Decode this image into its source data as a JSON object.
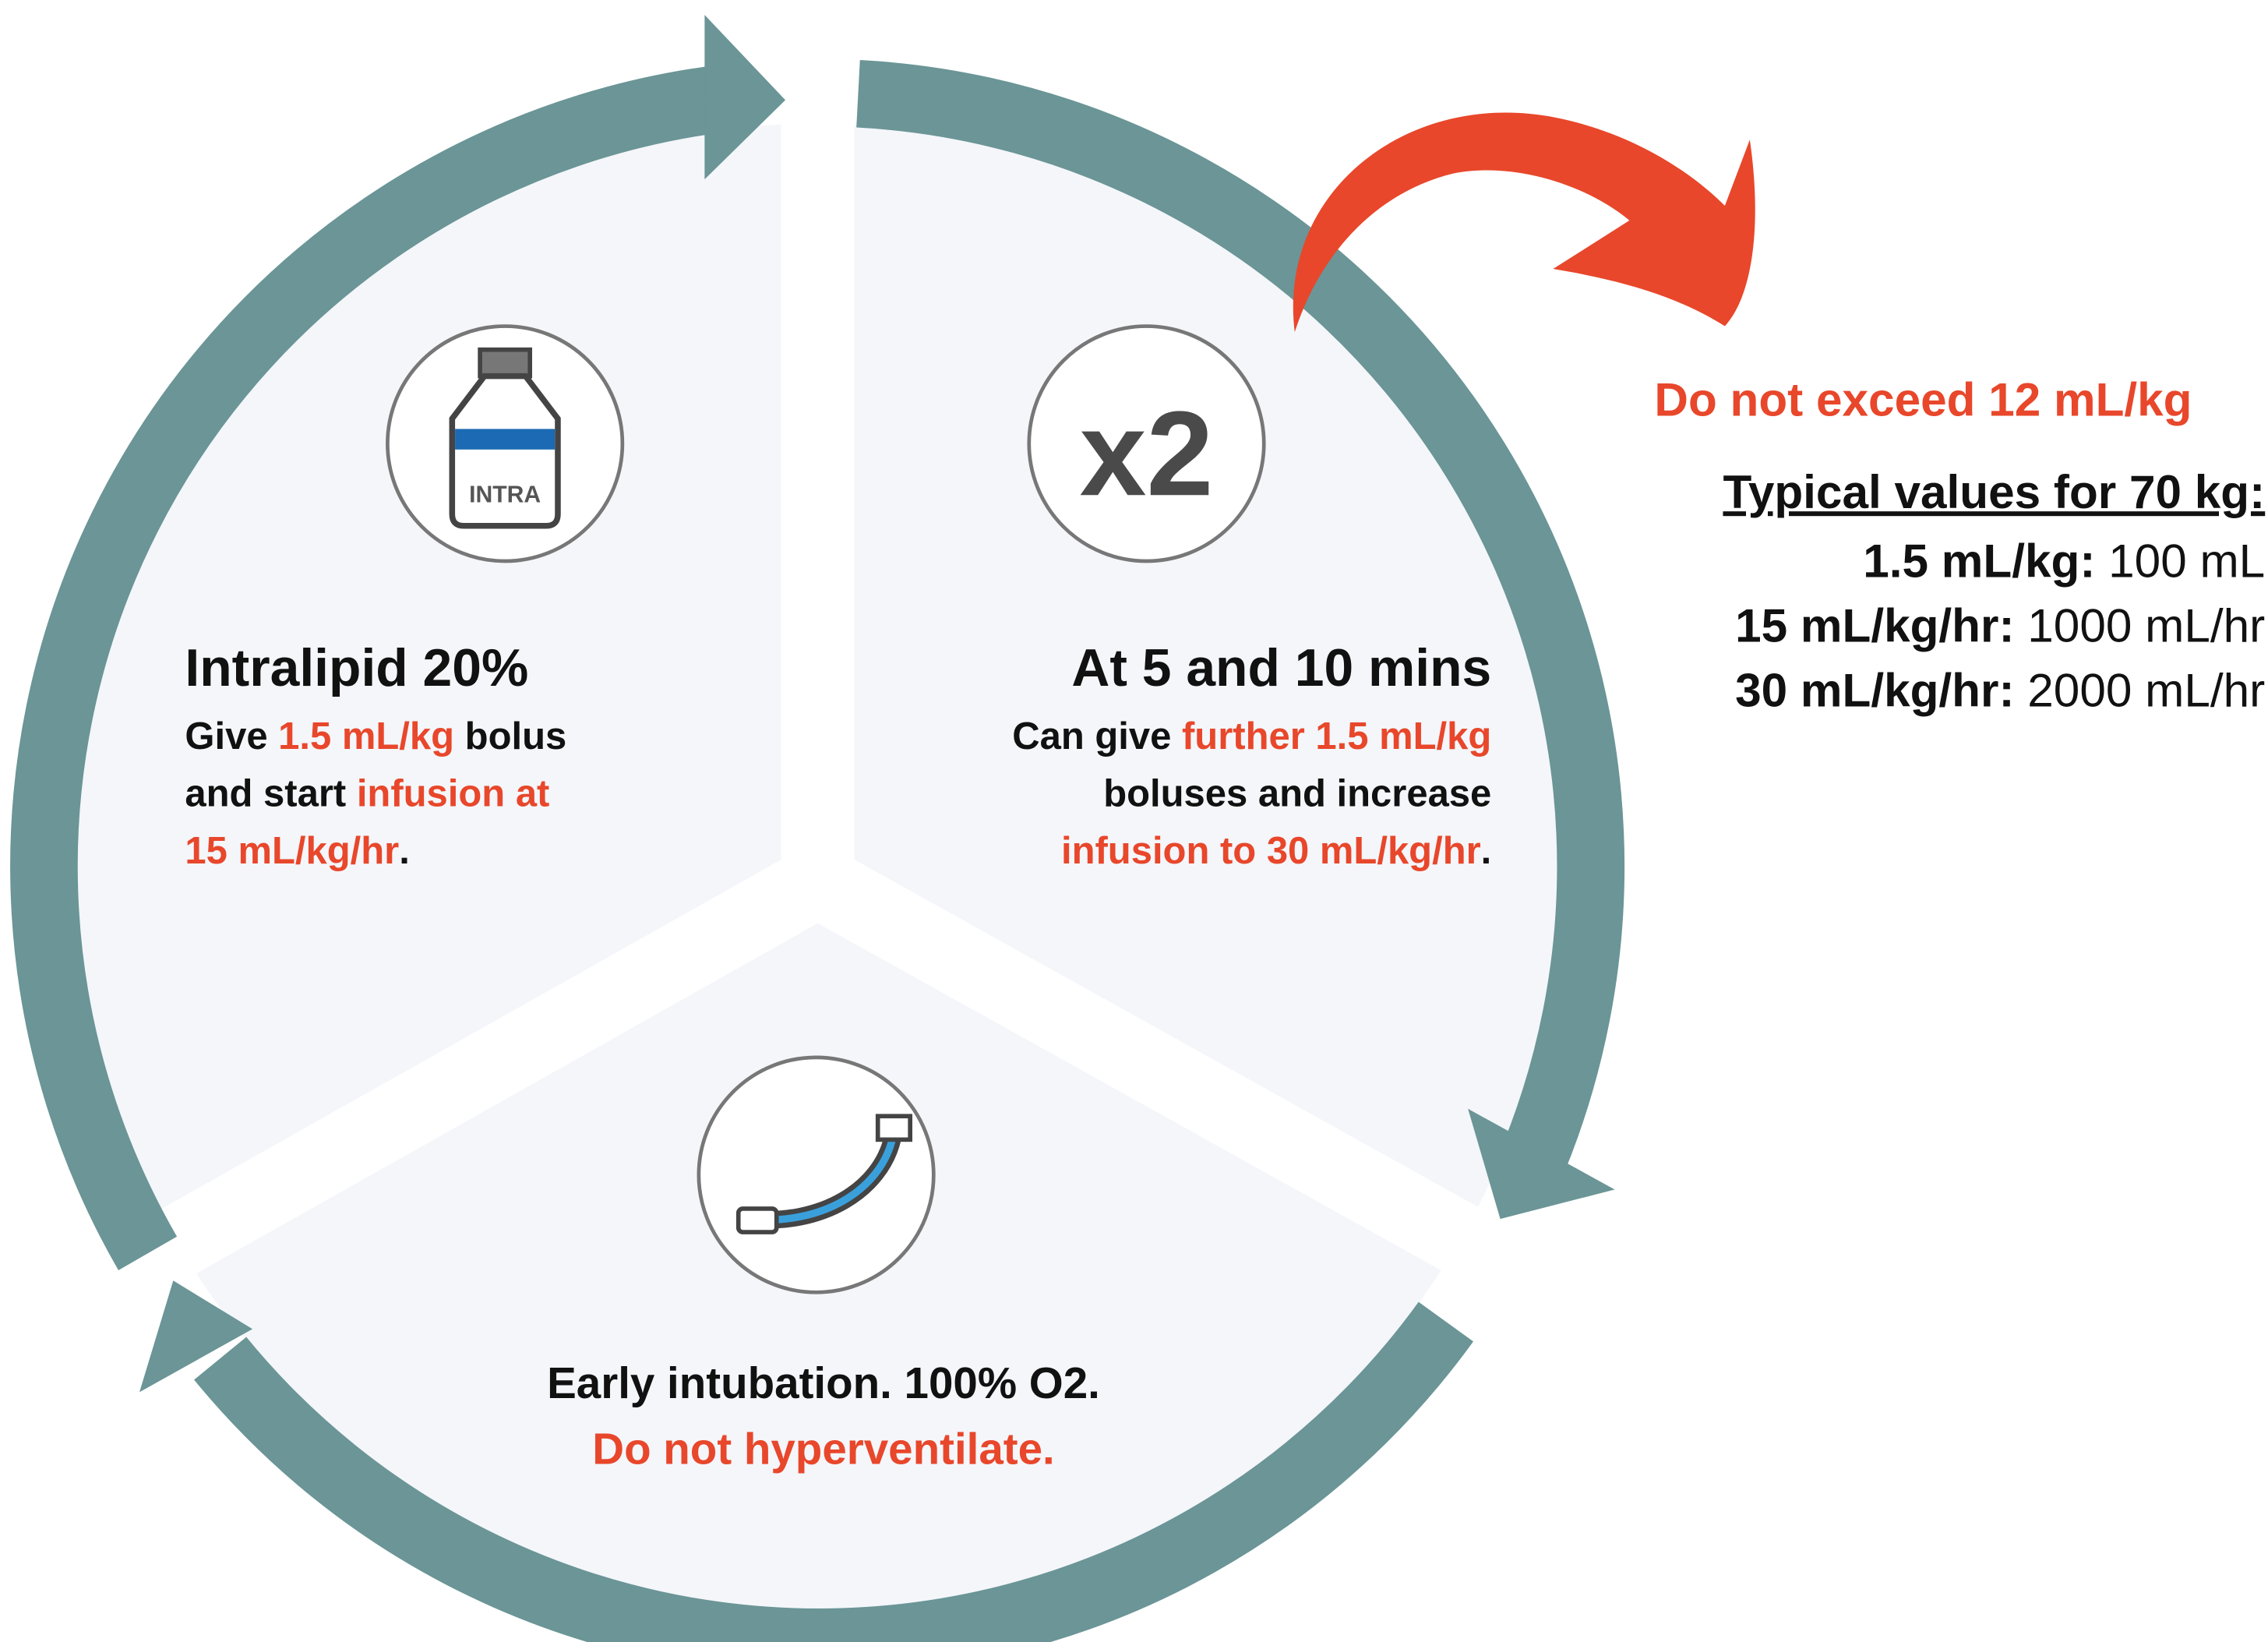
{
  "segments": [
    {
      "title": "Intralipid 20%",
      "icon_label": "INTRA",
      "lines": [
        [
          {
            "text": "Give "
          },
          {
            "text": "1.5 mL/kg",
            "color": "#e8472b"
          },
          {
            "text": " bolus"
          }
        ],
        [
          {
            "text": "and start "
          },
          {
            "text": "infusion at",
            "color": "#e8472b"
          }
        ],
        [
          {
            "text": "15 mL/kg/hr",
            "color": "#e8472b"
          },
          {
            "text": "."
          }
        ]
      ]
    },
    {
      "title": "At 5 and 10 mins",
      "icon_label": "x2",
      "lines": [
        [
          {
            "text": "Can give "
          },
          {
            "text": "further 1.5 mL/kg",
            "color": "#e8472b"
          }
        ],
        [
          {
            "text": "boluses and increase"
          }
        ],
        [
          {
            "text": "infusion to 30 mL/kg/hr",
            "color": "#e8472b"
          },
          {
            "text": "."
          }
        ]
      ]
    },
    {
      "lines": [
        [
          {
            "text": "Early intubation. 100% O2."
          }
        ],
        [
          {
            "text": "Do not hyperventilate.",
            "color": "#e8472b"
          }
        ]
      ]
    }
  ],
  "warning": {
    "text": "Do not exceed 12 mL/kg",
    "color": "#e8472b"
  },
  "typical": {
    "heading": "Typical values for 70 kg:",
    "rows": [
      {
        "label": "1.5 mL/kg:",
        "value": "100 mL"
      },
      {
        "label": "15 mL/kg/hr:",
        "value": "1000 mL/hr"
      },
      {
        "label": "30 mL/kg/hr:",
        "value": "2000 mL/hr"
      }
    ]
  }
}
